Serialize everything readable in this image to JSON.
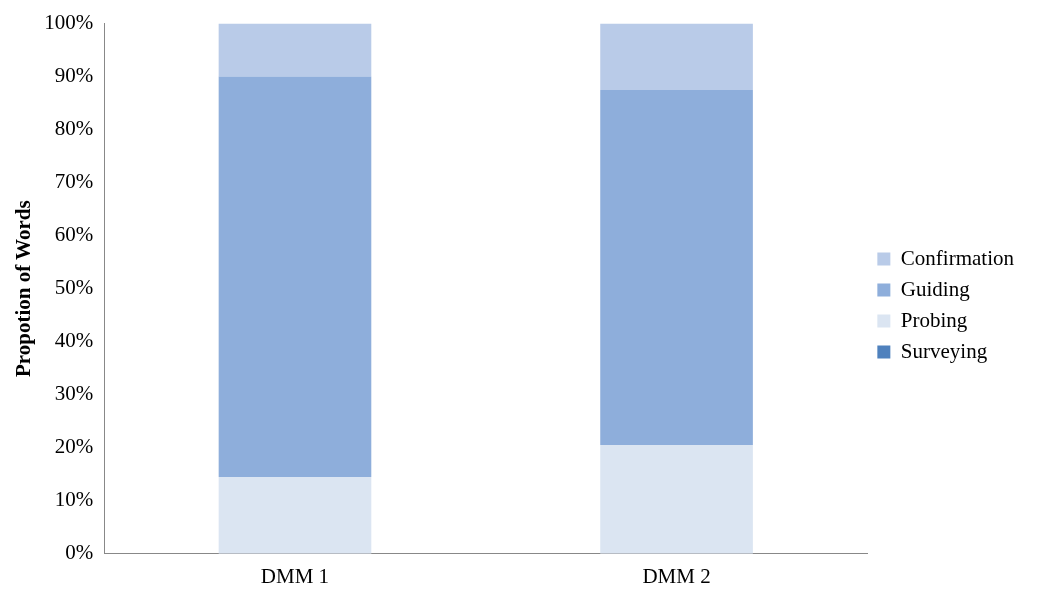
{
  "chart_data": {
    "type": "bar",
    "stacked": true,
    "categories": [
      "DMM 1",
      "DMM 2"
    ],
    "series": [
      {
        "name": "Surveying",
        "color": "#4f81bd",
        "values": [
          0,
          0
        ]
      },
      {
        "name": "Probing",
        "color": "#dbe5f2",
        "values": [
          14.5,
          20.5
        ]
      },
      {
        "name": "Guiding",
        "color": "#8eaedb",
        "values": [
          75.5,
          67
        ]
      },
      {
        "name": "Confirmation",
        "color": "#b9cbe8",
        "values": [
          10,
          12.5
        ]
      }
    ],
    "ylabel": "Propotion of Words",
    "ylim": [
      0,
      100
    ],
    "yticks": [
      {
        "value": 0,
        "label": "0%"
      },
      {
        "value": 10,
        "label": "10%"
      },
      {
        "value": 20,
        "label": "20%"
      },
      {
        "value": 30,
        "label": "30%"
      },
      {
        "value": 40,
        "label": "40%"
      },
      {
        "value": 50,
        "label": "50%"
      },
      {
        "value": 60,
        "label": "60%"
      },
      {
        "value": 70,
        "label": "70%"
      },
      {
        "value": 80,
        "label": "80%"
      },
      {
        "value": 90,
        "label": "90%"
      },
      {
        "value": 100,
        "label": "100%"
      }
    ],
    "grid": false,
    "legend": "right"
  }
}
